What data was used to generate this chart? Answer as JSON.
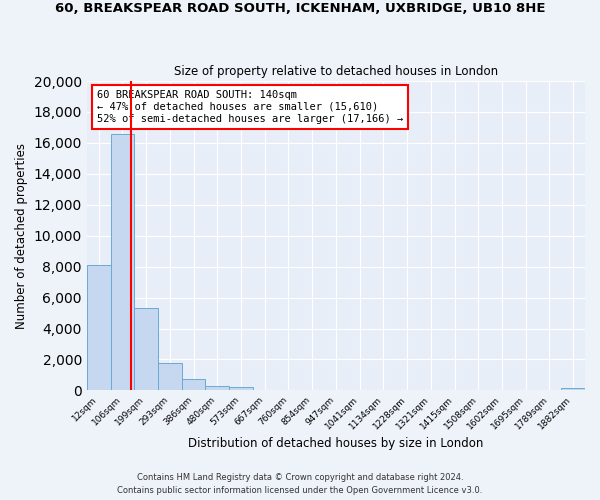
{
  "title": "60, BREAKSPEAR ROAD SOUTH, ICKENHAM, UXBRIDGE, UB10 8HE",
  "subtitle": "Size of property relative to detached houses in London",
  "xlabel": "Distribution of detached houses by size in London",
  "ylabel": "Number of detached properties",
  "bar_labels": [
    "12sqm",
    "106sqm",
    "199sqm",
    "293sqm",
    "386sqm",
    "480sqm",
    "573sqm",
    "667sqm",
    "760sqm",
    "854sqm",
    "947sqm",
    "1041sqm",
    "1134sqm",
    "1228sqm",
    "1321sqm",
    "1415sqm",
    "1508sqm",
    "1602sqm",
    "1695sqm",
    "1789sqm",
    "1882sqm"
  ],
  "bar_values": [
    8100,
    16600,
    5300,
    1800,
    750,
    300,
    200,
    0,
    0,
    0,
    0,
    0,
    0,
    0,
    0,
    0,
    0,
    0,
    0,
    0,
    150
  ],
  "bar_color": "#c5d8f0",
  "bar_edge_color": "#6aaad4",
  "red_line_x": 1.35,
  "annotation_text": "60 BREAKSPEAR ROAD SOUTH: 140sqm\n← 47% of detached houses are smaller (15,610)\n52% of semi-detached houses are larger (17,166) →",
  "ylim": [
    0,
    20000
  ],
  "yticks": [
    0,
    2000,
    4000,
    6000,
    8000,
    10000,
    12000,
    14000,
    16000,
    18000,
    20000
  ],
  "footer_line1": "Contains HM Land Registry data © Crown copyright and database right 2024.",
  "footer_line2": "Contains public sector information licensed under the Open Government Licence v3.0.",
  "bg_color": "#eef2f9",
  "plot_bg_color": "#e8eef8"
}
